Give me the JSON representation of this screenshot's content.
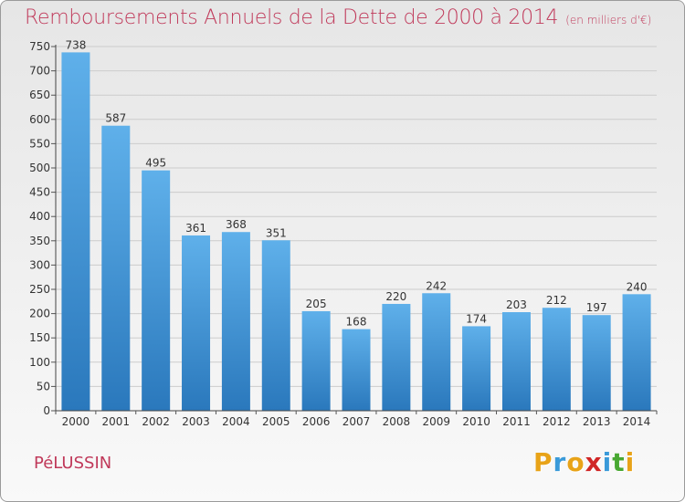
{
  "header": {
    "title": "Remboursements Annuels de la Dette de 2000 à 2014",
    "subtitle": "(en milliers d'€)"
  },
  "footer": {
    "commune": "PéLUSSIN",
    "logo": {
      "letters": [
        "P",
        "r",
        "o",
        "x",
        "i",
        "t",
        "i"
      ],
      "colors": [
        "#e8a318",
        "#3a9ad9",
        "#e8a318",
        "#d02626",
        "#3a9ad9",
        "#49a832",
        "#e8a318"
      ]
    }
  },
  "colors": {
    "title": "#c0395a",
    "bar_light": "#5fb0ea",
    "bar_dark": "#2a78bc",
    "grid": "#cccccc",
    "axis_text": "#333333"
  },
  "chart_data": {
    "type": "bar",
    "categories": [
      "2000",
      "2001",
      "2002",
      "2003",
      "2004",
      "2005",
      "2006",
      "2007",
      "2008",
      "2009",
      "2010",
      "2011",
      "2012",
      "2013",
      "2014"
    ],
    "values": [
      738,
      587,
      495,
      361,
      368,
      351,
      205,
      168,
      220,
      242,
      174,
      203,
      212,
      197,
      240
    ],
    "title": "Remboursements Annuels de la Dette de 2000 à 2014",
    "subtitle": "(en milliers d'€)",
    "xlabel": "",
    "ylabel": "",
    "ylim": [
      0,
      750
    ],
    "yticks": [
      0,
      50,
      100,
      150,
      200,
      250,
      300,
      350,
      400,
      450,
      500,
      550,
      600,
      650,
      700,
      750
    ],
    "grid": true,
    "data_labels": true
  }
}
